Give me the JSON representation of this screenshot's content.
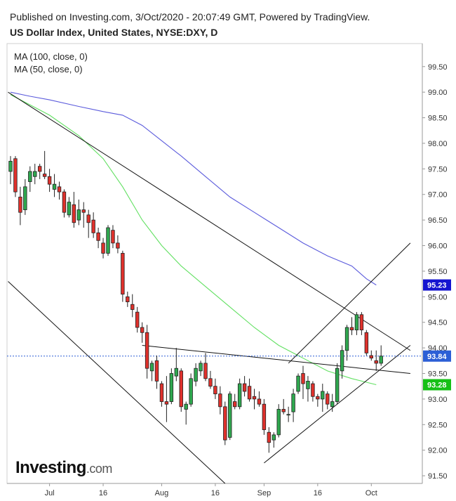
{
  "header": {
    "published": "Published on Investing.com, 3/Oct/2020 - 20:07:49 GMT, Powered by TradingView.",
    "instrument": "US Dollar Index, United States, NYSE:DXY, D"
  },
  "legend": [
    "MA (100, close, 0)",
    "MA (50, close, 0)"
  ],
  "brand": {
    "name": "Investing",
    "suffix": ".com"
  },
  "colors": {
    "up": "#2fa84f",
    "down": "#e0312c",
    "ma100": "#5b5bdc",
    "ma50": "#62e062",
    "price_tag": "#2c5fd6",
    "ma100_tag": "#1515d0",
    "ma50_tag": "#16c016",
    "trend": "#111111"
  },
  "chart_data": {
    "type": "candlestick",
    "title": "US Dollar Index, United States, NYSE:DXY, D",
    "ylim": [
      91.35,
      99.95
    ],
    "yticks": [
      "91.50",
      "92.00",
      "92.50",
      "93.00",
      "93.50",
      "94.00",
      "94.50",
      "95.00",
      "95.50",
      "96.00",
      "96.50",
      "97.00",
      "97.50",
      "98.00",
      "98.50",
      "99.00",
      "99.50"
    ],
    "x_labels": [
      {
        "label": "Jul",
        "index": 8
      },
      {
        "label": "16",
        "index": 19
      },
      {
        "label": "Aug",
        "index": 31
      },
      {
        "label": "16",
        "index": 42
      },
      {
        "label": "Sep",
        "index": 52
      },
      {
        "label": "16",
        "index": 63
      },
      {
        "label": "Oct",
        "index": 74
      }
    ],
    "price_tags": [
      {
        "name": "ma100",
        "value": "95.23",
        "color": "#1515d0"
      },
      {
        "name": "last",
        "value": "93.84",
        "color": "#2c5fd6"
      },
      {
        "name": "ma50",
        "value": "93.28",
        "color": "#16c016"
      }
    ],
    "last_price": 93.84,
    "candles": [
      {
        "o": 97.45,
        "h": 97.75,
        "l": 97.2,
        "c": 97.65
      },
      {
        "o": 97.7,
        "h": 97.75,
        "l": 96.95,
        "c": 97.05
      },
      {
        "o": 96.95,
        "h": 97.15,
        "l": 96.4,
        "c": 96.65
      },
      {
        "o": 96.7,
        "h": 97.3,
        "l": 96.6,
        "c": 97.15
      },
      {
        "o": 97.25,
        "h": 97.55,
        "l": 97.05,
        "c": 97.45
      },
      {
        "o": 97.35,
        "h": 97.6,
        "l": 97.2,
        "c": 97.45
      },
      {
        "o": 97.55,
        "h": 97.6,
        "l": 97.3,
        "c": 97.45
      },
      {
        "o": 97.4,
        "h": 97.85,
        "l": 97.3,
        "c": 97.35
      },
      {
        "o": 97.35,
        "h": 97.5,
        "l": 97.05,
        "c": 97.2
      },
      {
        "o": 97.1,
        "h": 97.4,
        "l": 96.95,
        "c": 97.2
      },
      {
        "o": 97.15,
        "h": 97.25,
        "l": 96.9,
        "c": 97.05
      },
      {
        "o": 97.05,
        "h": 97.1,
        "l": 96.55,
        "c": 96.65
      },
      {
        "o": 96.6,
        "h": 96.95,
        "l": 96.55,
        "c": 96.85
      },
      {
        "o": 96.8,
        "h": 97.05,
        "l": 96.35,
        "c": 96.45
      },
      {
        "o": 96.5,
        "h": 96.9,
        "l": 96.4,
        "c": 96.7
      },
      {
        "o": 96.7,
        "h": 96.85,
        "l": 96.35,
        "c": 96.65
      },
      {
        "o": 96.6,
        "h": 96.7,
        "l": 96.15,
        "c": 96.45
      },
      {
        "o": 96.5,
        "h": 96.65,
        "l": 96.15,
        "c": 96.25
      },
      {
        "o": 96.25,
        "h": 96.35,
        "l": 95.95,
        "c": 96.1
      },
      {
        "o": 96.05,
        "h": 96.15,
        "l": 95.75,
        "c": 95.85
      },
      {
        "o": 95.85,
        "h": 96.4,
        "l": 95.8,
        "c": 96.35
      },
      {
        "o": 96.3,
        "h": 96.4,
        "l": 95.95,
        "c": 96.05
      },
      {
        "o": 96.05,
        "h": 96.2,
        "l": 95.85,
        "c": 95.95
      },
      {
        "o": 95.85,
        "h": 95.9,
        "l": 94.9,
        "c": 95.05
      },
      {
        "o": 95.0,
        "h": 95.1,
        "l": 94.8,
        "c": 94.9
      },
      {
        "o": 94.85,
        "h": 95.05,
        "l": 94.6,
        "c": 94.75
      },
      {
        "o": 94.7,
        "h": 94.8,
        "l": 94.3,
        "c": 94.4
      },
      {
        "o": 94.4,
        "h": 94.5,
        "l": 94.1,
        "c": 94.3
      },
      {
        "o": 94.3,
        "h": 94.45,
        "l": 93.4,
        "c": 93.6
      },
      {
        "o": 93.55,
        "h": 93.75,
        "l": 93.35,
        "c": 93.7
      },
      {
        "o": 93.75,
        "h": 93.85,
        "l": 93.2,
        "c": 93.35
      },
      {
        "o": 93.3,
        "h": 93.35,
        "l": 92.85,
        "c": 92.95
      },
      {
        "o": 92.95,
        "h": 93.45,
        "l": 92.55,
        "c": 92.9
      },
      {
        "o": 92.95,
        "h": 93.6,
        "l": 92.9,
        "c": 93.5
      },
      {
        "o": 93.45,
        "h": 94.0,
        "l": 93.35,
        "c": 93.6
      },
      {
        "o": 93.55,
        "h": 93.6,
        "l": 92.75,
        "c": 92.85
      },
      {
        "o": 92.8,
        "h": 92.95,
        "l": 92.5,
        "c": 92.9
      },
      {
        "o": 92.9,
        "h": 93.5,
        "l": 92.85,
        "c": 93.4
      },
      {
        "o": 93.35,
        "h": 93.7,
        "l": 93.25,
        "c": 93.6
      },
      {
        "o": 93.55,
        "h": 93.75,
        "l": 93.45,
        "c": 93.7
      },
      {
        "o": 93.7,
        "h": 93.9,
        "l": 93.35,
        "c": 93.4
      },
      {
        "o": 93.4,
        "h": 93.55,
        "l": 93.2,
        "c": 93.25
      },
      {
        "o": 93.25,
        "h": 93.4,
        "l": 93.0,
        "c": 93.1
      },
      {
        "o": 93.1,
        "h": 93.25,
        "l": 92.7,
        "c": 92.85
      },
      {
        "o": 92.85,
        "h": 92.95,
        "l": 92.1,
        "c": 92.2
      },
      {
        "o": 92.25,
        "h": 93.15,
        "l": 92.2,
        "c": 93.1
      },
      {
        "o": 92.95,
        "h": 93.1,
        "l": 92.8,
        "c": 92.85
      },
      {
        "o": 92.85,
        "h": 93.4,
        "l": 92.8,
        "c": 93.3
      },
      {
        "o": 93.3,
        "h": 93.45,
        "l": 93.05,
        "c": 93.15
      },
      {
        "o": 93.25,
        "h": 93.4,
        "l": 92.95,
        "c": 93.0
      },
      {
        "o": 93.05,
        "h": 93.2,
        "l": 92.8,
        "c": 93.0
      },
      {
        "o": 93.0,
        "h": 93.15,
        "l": 92.85,
        "c": 92.9
      },
      {
        "o": 92.9,
        "h": 93.0,
        "l": 92.3,
        "c": 92.4
      },
      {
        "o": 92.35,
        "h": 92.45,
        "l": 91.95,
        "c": 92.15
      },
      {
        "o": 92.2,
        "h": 92.35,
        "l": 92.05,
        "c": 92.3
      },
      {
        "o": 92.3,
        "h": 92.9,
        "l": 92.25,
        "c": 92.8
      },
      {
        "o": 92.8,
        "h": 93.0,
        "l": 92.7,
        "c": 92.75
      },
      {
        "o": 92.7,
        "h": 92.85,
        "l": 92.55,
        "c": 92.7
      },
      {
        "o": 92.75,
        "h": 93.2,
        "l": 92.55,
        "c": 93.1
      },
      {
        "o": 93.15,
        "h": 93.5,
        "l": 93.1,
        "c": 93.45
      },
      {
        "o": 93.5,
        "h": 93.65,
        "l": 93.0,
        "c": 93.3
      },
      {
        "o": 93.2,
        "h": 93.45,
        "l": 92.95,
        "c": 93.35
      },
      {
        "o": 93.3,
        "h": 93.35,
        "l": 92.95,
        "c": 93.05
      },
      {
        "o": 93.05,
        "h": 93.1,
        "l": 92.85,
        "c": 93.0
      },
      {
        "o": 93.0,
        "h": 93.3,
        "l": 92.75,
        "c": 93.15
      },
      {
        "o": 93.1,
        "h": 93.15,
        "l": 92.8,
        "c": 92.9
      },
      {
        "o": 92.85,
        "h": 93.1,
        "l": 92.75,
        "c": 92.95
      },
      {
        "o": 92.95,
        "h": 93.7,
        "l": 92.9,
        "c": 93.6
      },
      {
        "o": 93.55,
        "h": 94.05,
        "l": 93.4,
        "c": 93.95
      },
      {
        "o": 93.95,
        "h": 94.45,
        "l": 93.75,
        "c": 94.4
      },
      {
        "o": 94.4,
        "h": 94.6,
        "l": 94.25,
        "c": 94.35
      },
      {
        "o": 94.35,
        "h": 94.7,
        "l": 94.25,
        "c": 94.65
      },
      {
        "o": 94.65,
        "h": 94.7,
        "l": 94.25,
        "c": 94.35
      },
      {
        "o": 94.3,
        "h": 94.35,
        "l": 93.85,
        "c": 93.9
      },
      {
        "o": 93.85,
        "h": 93.95,
        "l": 93.75,
        "c": 93.8
      },
      {
        "o": 93.75,
        "h": 93.95,
        "l": 93.55,
        "c": 93.7
      },
      {
        "o": 93.7,
        "h": 94.05,
        "l": 93.65,
        "c": 93.84
      }
    ],
    "ma100": [
      {
        "i": 0,
        "v": 99.0
      },
      {
        "i": 4,
        "v": 98.92
      },
      {
        "i": 8,
        "v": 98.85
      },
      {
        "i": 14,
        "v": 98.72
      },
      {
        "i": 19,
        "v": 98.62
      },
      {
        "i": 23,
        "v": 98.55
      },
      {
        "i": 27,
        "v": 98.35
      },
      {
        "i": 31,
        "v": 98.05
      },
      {
        "i": 35,
        "v": 97.75
      },
      {
        "i": 40,
        "v": 97.35
      },
      {
        "i": 45,
        "v": 96.95
      },
      {
        "i": 50,
        "v": 96.65
      },
      {
        "i": 55,
        "v": 96.35
      },
      {
        "i": 60,
        "v": 96.05
      },
      {
        "i": 65,
        "v": 95.8
      },
      {
        "i": 70,
        "v": 95.6
      },
      {
        "i": 73,
        "v": 95.35
      },
      {
        "i": 75,
        "v": 95.23
      }
    ],
    "ma50": [
      {
        "i": 0,
        "v": 98.95
      },
      {
        "i": 4,
        "v": 98.75
      },
      {
        "i": 8,
        "v": 98.55
      },
      {
        "i": 14,
        "v": 98.15
      },
      {
        "i": 19,
        "v": 97.7
      },
      {
        "i": 23,
        "v": 97.15
      },
      {
        "i": 27,
        "v": 96.5
      },
      {
        "i": 31,
        "v": 96.0
      },
      {
        "i": 35,
        "v": 95.6
      },
      {
        "i": 40,
        "v": 95.2
      },
      {
        "i": 45,
        "v": 94.8
      },
      {
        "i": 50,
        "v": 94.4
      },
      {
        "i": 55,
        "v": 94.05
      },
      {
        "i": 60,
        "v": 93.8
      },
      {
        "i": 65,
        "v": 93.55
      },
      {
        "i": 70,
        "v": 93.4
      },
      {
        "i": 75,
        "v": 93.28
      }
    ],
    "trendlines": [
      {
        "name": "upper-downtrend",
        "from": {
          "i": -0.5,
          "v": 99.0
        },
        "to": {
          "i": 82,
          "v": 93.95
        }
      },
      {
        "name": "lower-channel",
        "from": {
          "i": -0.5,
          "v": 95.3
        },
        "to": {
          "i": 44,
          "v": 91.35
        }
      },
      {
        "name": "horizontal-resistance",
        "from": {
          "i": 27,
          "v": 94.05
        },
        "to": {
          "i": 82,
          "v": 93.5
        }
      },
      {
        "name": "wedge-support",
        "from": {
          "i": 52,
          "v": 91.75
        },
        "to": {
          "i": 82,
          "v": 94.05
        }
      },
      {
        "name": "rising-channel-upper",
        "from": {
          "i": 57,
          "v": 93.7
        },
        "to": {
          "i": 82,
          "v": 96.05
        }
      }
    ]
  }
}
